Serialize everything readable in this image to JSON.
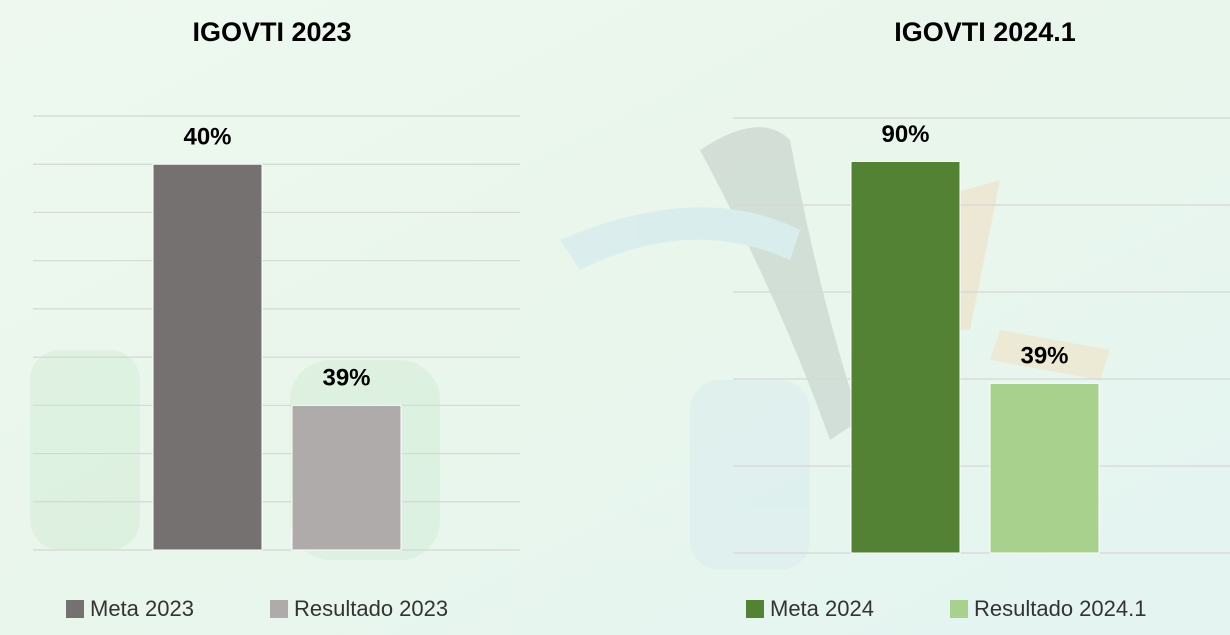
{
  "chart_data": [
    {
      "type": "bar",
      "title": "IGOVTI 2023",
      "categories": [
        null
      ],
      "series": [
        {
          "name": "Meta 2023",
          "color": "#767171",
          "values": [
            40
          ],
          "value_labels": [
            "40%"
          ]
        },
        {
          "name": "Resultado 2023",
          "color": "#afabab",
          "values": [
            39
          ],
          "value_labels": [
            "39%"
          ]
        }
      ],
      "ylim": [
        38.4,
        40.2
      ],
      "yticks": [
        38.4,
        38.6,
        38.8,
        39,
        39.2,
        39.4,
        39.6,
        39.8,
        40,
        40.2
      ],
      "grid": true,
      "legend": "bottom"
    },
    {
      "type": "bar",
      "title": "IGOVTI 2024.1",
      "categories": [
        null
      ],
      "series": [
        {
          "name": "Meta 2024",
          "color": "#548235",
          "values": [
            90
          ],
          "value_labels": [
            "90%"
          ]
        },
        {
          "name": "Resultado 2024.1",
          "color": "#a9d18e",
          "values": [
            39
          ],
          "value_labels": [
            "39%"
          ]
        }
      ],
      "ylim": [
        0,
        100
      ],
      "yticks": [
        0,
        20,
        40,
        60,
        80,
        100
      ],
      "grid": true,
      "legend": "bottom"
    }
  ]
}
